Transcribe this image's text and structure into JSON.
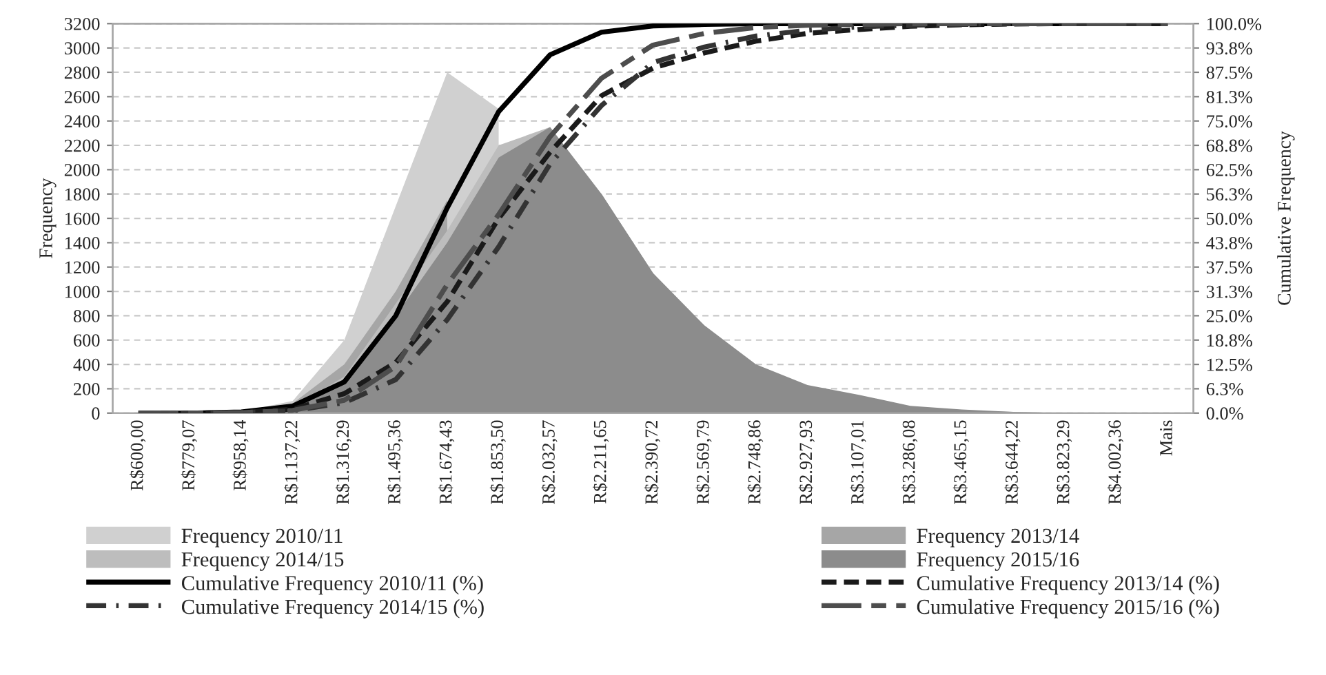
{
  "chart_data": {
    "type": "area",
    "ylabel": "Frequency",
    "y2label": "Cumulative Frequency",
    "categories": [
      "R$600,00",
      "R$779,07",
      "R$958,14",
      "R$1.137,22",
      "R$1.316,29",
      "R$1.495,36",
      "R$1.674,43",
      "R$1.853,50",
      "R$2.032,57",
      "R$2.211,65",
      "R$2.390,72",
      "R$2.569,79",
      "R$2.748,86",
      "R$2.927,93",
      "R$3.107,01",
      "R$3.286,08",
      "R$3.465,15",
      "R$3.644,22",
      "R$3.823,29",
      "R$4.002,36",
      "Mais"
    ],
    "series": [
      {
        "name": "Frequency 2010/11",
        "color": "#d0d0d0",
        "values": [
          0,
          0,
          10,
          100,
          600,
          1700,
          2800,
          2500,
          null,
          null,
          null,
          null,
          null,
          null,
          null,
          null,
          null,
          null,
          null,
          null,
          null
        ]
      },
      {
        "name": "Frequency 2013/14",
        "color": "#a6a6a6",
        "values": [
          0,
          0,
          10,
          80,
          400,
          1000,
          1750,
          null,
          null,
          1800,
          1150,
          null,
          null,
          null,
          null,
          null,
          20,
          10,
          0,
          0,
          0
        ]
      },
      {
        "name": "Frequency 2014/15",
        "color": "#bdbdbd",
        "values": [
          0,
          0,
          0,
          50,
          300,
          900,
          1500,
          2200,
          2350,
          null,
          null,
          null,
          null,
          null,
          null,
          null,
          null,
          null,
          null,
          null,
          null
        ]
      },
      {
        "name": "Frequency 2015/16",
        "color": "#8c8c8c",
        "values": [
          0,
          0,
          0,
          40,
          250,
          800,
          1400,
          2100,
          2350,
          1800,
          1150,
          720,
          400,
          230,
          150,
          60,
          30,
          10,
          0,
          0,
          0
        ]
      },
      {
        "name": "Cumulative Frequency 2010/11 (%)",
        "type": "line",
        "axis": "y2",
        "line_style": "solid",
        "color": "#000000",
        "values": [
          0,
          0,
          0.3,
          1.8,
          8,
          25,
          52.7,
          77.4,
          92,
          97.8,
          99.4,
          99.8,
          100,
          100,
          100,
          100,
          100,
          100,
          100,
          100,
          100
        ]
      },
      {
        "name": "Cumulative Frequency 2013/14 (%)",
        "type": "line",
        "axis": "y2",
        "line_style": "dashed",
        "color": "#1a1a1a",
        "values": [
          0,
          0,
          0.2,
          1,
          5,
          13,
          28.6,
          50,
          67,
          81.5,
          88.6,
          92.5,
          95.5,
          97.5,
          98.5,
          99.3,
          99.7,
          99.9,
          100,
          100,
          100
        ]
      },
      {
        "name": "Cumulative Frequency 2014/15 (%)",
        "type": "line",
        "axis": "y2",
        "line_style": "dashdot",
        "color": "#333333",
        "values": [
          0,
          0,
          0.1,
          0.6,
          2.7,
          8.6,
          24,
          42.7,
          64,
          79,
          90,
          94,
          96.8,
          98.3,
          99.2,
          99.6,
          99.8,
          100,
          100,
          100,
          100
        ]
      },
      {
        "name": "Cumulative Frequency 2015/16 (%)",
        "type": "line",
        "axis": "y2",
        "line_style": "longdash",
        "color": "#4d4d4d",
        "values": [
          0,
          0,
          0.1,
          0.7,
          3.3,
          12,
          33,
          51,
          71,
          86,
          94.5,
          97.5,
          99,
          99.6,
          99.8,
          100,
          100,
          100,
          100,
          100,
          100
        ]
      }
    ],
    "ylim": [
      0,
      3200
    ],
    "yticks": [
      0,
      200,
      400,
      600,
      800,
      1000,
      1200,
      1400,
      1600,
      1800,
      2000,
      2200,
      2400,
      2600,
      2800,
      3000,
      3200
    ],
    "y2lim": [
      0,
      100
    ],
    "y2ticks": [
      {
        "value": 0,
        "label": "0.0%"
      },
      {
        "value": 6.25,
        "label": "6.3%"
      },
      {
        "value": 12.5,
        "label": "12.5%"
      },
      {
        "value": 18.75,
        "label": "18.8%"
      },
      {
        "value": 25,
        "label": "25.0%"
      },
      {
        "value": 31.25,
        "label": "31.3%"
      },
      {
        "value": 37.5,
        "label": "37.5%"
      },
      {
        "value": 43.75,
        "label": "43.8%"
      },
      {
        "value": 50,
        "label": "50.0%"
      },
      {
        "value": 56.25,
        "label": "56.3%"
      },
      {
        "value": 62.5,
        "label": "62.5%"
      },
      {
        "value": 68.75,
        "label": "68.8%"
      },
      {
        "value": 75,
        "label": "75.0%"
      },
      {
        "value": 81.25,
        "label": "81.3%"
      },
      {
        "value": 87.5,
        "label": "87.5%"
      },
      {
        "value": 93.75,
        "label": "93.8%"
      },
      {
        "value": 100,
        "label": "100.0%"
      }
    ],
    "grid": "y",
    "legend": "bottom"
  }
}
